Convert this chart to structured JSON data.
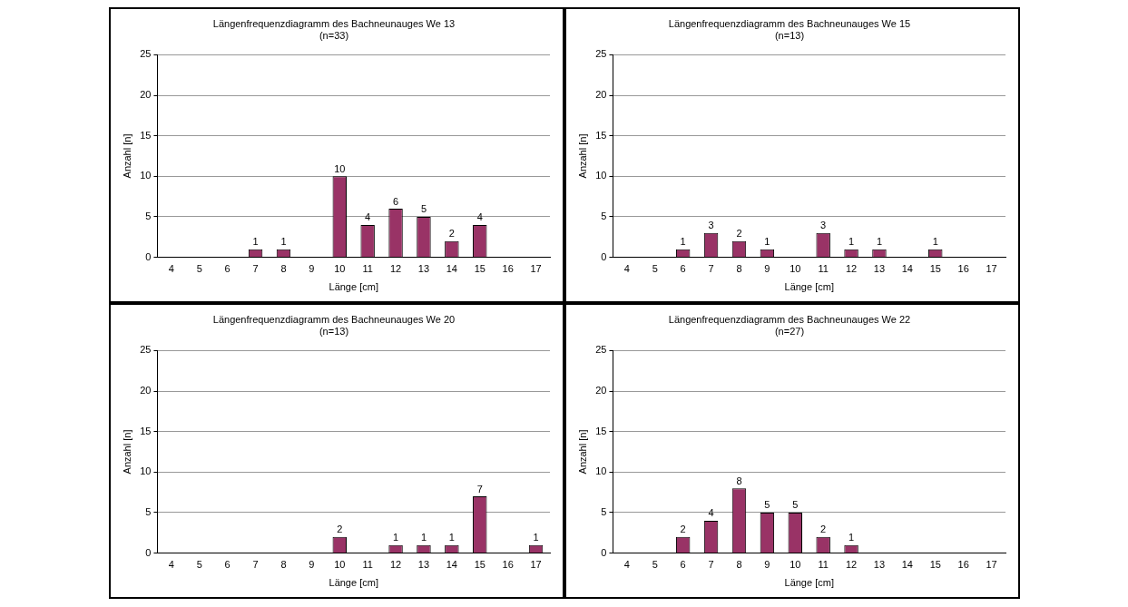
{
  "chart_data": [
    {
      "type": "bar",
      "title": "Längenfrequenzdiagramm des Bachneunauges We 13",
      "subtitle": "(n=33)",
      "xlabel": "Länge [cm]",
      "ylabel": "Anzahl [n]",
      "categories": [
        "4",
        "5",
        "6",
        "7",
        "8",
        "9",
        "10",
        "11",
        "12",
        "13",
        "14",
        "15",
        "16",
        "17"
      ],
      "values": [
        0,
        0,
        0,
        1,
        1,
        0,
        10,
        4,
        6,
        5,
        2,
        4,
        0,
        0
      ],
      "value_labels": [
        null,
        null,
        null,
        "1",
        "1",
        null,
        "10",
        "4",
        "6",
        "5",
        "2",
        "4",
        null,
        null
      ],
      "color": "#993366",
      "ylim": [
        0,
        25
      ],
      "yticks": [
        0,
        5,
        10,
        15,
        20,
        25
      ],
      "grid": "y"
    },
    {
      "type": "bar",
      "title": "Längenfrequenzdiagramm des Bachneunauges We 15",
      "subtitle": "(n=13)",
      "xlabel": "Länge [cm]",
      "ylabel": "Anzahl [n]",
      "categories": [
        "4",
        "5",
        "6",
        "7",
        "8",
        "9",
        "10",
        "11",
        "12",
        "13",
        "14",
        "15",
        "16",
        "17"
      ],
      "values": [
        0,
        0,
        1,
        3,
        2,
        1,
        0,
        3,
        1,
        1,
        0,
        1,
        0,
        0
      ],
      "value_labels": [
        null,
        null,
        "1",
        "3",
        "2",
        "1",
        null,
        "3",
        "1",
        "1",
        null,
        "1",
        null,
        null
      ],
      "color": "#993366",
      "ylim": [
        0,
        25
      ],
      "yticks": [
        0,
        5,
        10,
        15,
        20,
        25
      ],
      "grid": "y"
    },
    {
      "type": "bar",
      "title": "Längenfrequenzdiagramm des Bachneunauges We 20",
      "subtitle": "(n=13)",
      "xlabel": "Länge [cm]",
      "ylabel": "Anzahl [n]",
      "categories": [
        "4",
        "5",
        "6",
        "7",
        "8",
        "9",
        "10",
        "11",
        "12",
        "13",
        "14",
        "15",
        "16",
        "17"
      ],
      "values": [
        0,
        0,
        0,
        0,
        0,
        0,
        2,
        0,
        1,
        1,
        1,
        7,
        0,
        1
      ],
      "value_labels": [
        null,
        null,
        null,
        null,
        null,
        null,
        "2",
        null,
        "1",
        "1",
        "1",
        "7",
        null,
        "1"
      ],
      "color": "#993366",
      "ylim": [
        0,
        25
      ],
      "yticks": [
        0,
        5,
        10,
        15,
        20,
        25
      ],
      "grid": "y"
    },
    {
      "type": "bar",
      "title": "Längenfrequenzdiagramm des Bachneunauges We 22",
      "subtitle": "(n=27)",
      "xlabel": "Länge [cm]",
      "ylabel": "Anzahl [n]",
      "categories": [
        "4",
        "5",
        "6",
        "7",
        "8",
        "9",
        "10",
        "11",
        "12",
        "13",
        "14",
        "15",
        "16",
        "17"
      ],
      "values": [
        0,
        0,
        2,
        4,
        8,
        5,
        5,
        2,
        1,
        0,
        0,
        0,
        0,
        0
      ],
      "value_labels": [
        null,
        null,
        "2",
        "4",
        "8",
        "5",
        "5",
        "2",
        "1",
        null,
        null,
        null,
        null,
        null
      ],
      "color": "#993366",
      "ylim": [
        0,
        25
      ],
      "yticks": [
        0,
        5,
        10,
        15,
        20,
        25
      ],
      "grid": "y"
    }
  ]
}
